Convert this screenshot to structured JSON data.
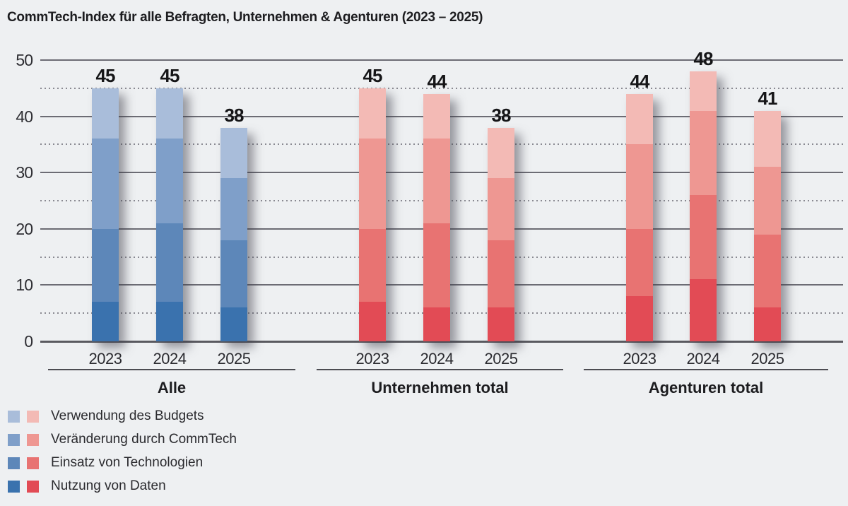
{
  "page": {
    "background": "#eef0f2"
  },
  "chart_data": {
    "type": "stacked-bar",
    "title": "CommTech-Index für alle Befragten, Unternehmen & Agenturen (2023 – 2025)",
    "ylim": [
      0,
      50
    ],
    "yticks": [
      0,
      10,
      20,
      30,
      40,
      50
    ],
    "minor_yticks": [
      5,
      15,
      25,
      35,
      45
    ],
    "grid": "horizontal, solid major + dotted minor",
    "legend_position": "bottom-left",
    "segments_order_bottom_to_top": [
      "Nutzung von Daten",
      "Einsatz von Technologien",
      "Veränderung durch CommTech",
      "Verwendung des Budgets"
    ],
    "segment_keys": [
      "nutzung-von-daten",
      "einsatz-von-technologien",
      "veraenderung-durch-commtech",
      "verwendung-des-budgets"
    ],
    "palettes": {
      "blue": [
        "#3a72ae",
        "#5d87b9",
        "#7f9fc9",
        "#a9bdda"
      ],
      "red": [
        "#e24b55",
        "#e87372",
        "#ee9792",
        "#f3bab5"
      ]
    },
    "groups": [
      {
        "label": "Alle",
        "palette": "blue",
        "bars": [
          {
            "year": "2023",
            "total": 45,
            "values": [
              7,
              13,
              16,
              9
            ]
          },
          {
            "year": "2024",
            "total": 45,
            "values": [
              7,
              14,
              15,
              9
            ]
          },
          {
            "year": "2025",
            "total": 38,
            "values": [
              6,
              12,
              11,
              9
            ]
          }
        ]
      },
      {
        "label": "Unternehmen total",
        "palette": "red",
        "bars": [
          {
            "year": "2023",
            "total": 45,
            "values": [
              7,
              13,
              16,
              9
            ]
          },
          {
            "year": "2024",
            "total": 44,
            "values": [
              6,
              15,
              15,
              8
            ]
          },
          {
            "year": "2025",
            "total": 38,
            "values": [
              6,
              12,
              11,
              9
            ]
          }
        ]
      },
      {
        "label": "Agenturen total",
        "palette": "red",
        "bars": [
          {
            "year": "2023",
            "total": 44,
            "values": [
              8,
              12,
              15,
              9
            ]
          },
          {
            "year": "2024",
            "total": 48,
            "values": [
              11,
              15,
              15,
              7
            ]
          },
          {
            "year": "2025",
            "total": 41,
            "values": [
              6,
              13,
              12,
              10
            ]
          }
        ]
      }
    ],
    "legend": [
      {
        "label": "Verwendung des Budgets",
        "blue": "#a9bdda",
        "red": "#f3bab5"
      },
      {
        "label": "Veränderung durch CommTech",
        "blue": "#7f9fc9",
        "red": "#ee9792"
      },
      {
        "label": "Einsatz von Technologien",
        "blue": "#5d87b9",
        "red": "#e87372"
      },
      {
        "label": "Nutzung von Daten",
        "blue": "#3a72ae",
        "red": "#e24b55"
      }
    ]
  }
}
